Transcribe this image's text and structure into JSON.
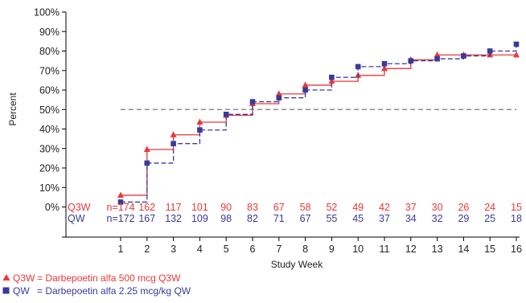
{
  "chart_data": {
    "type": "line",
    "step": true,
    "title": "",
    "xlabel": "Study Week",
    "ylabel": "Percent",
    "xlim": [
      0,
      16.5
    ],
    "ylim": [
      -10,
      100
    ],
    "x_ticks": [
      1,
      2,
      3,
      4,
      5,
      6,
      7,
      8,
      9,
      10,
      11,
      12,
      13,
      14,
      15,
      16
    ],
    "y_ticks": [
      0,
      10,
      20,
      30,
      40,
      50,
      60,
      70,
      80,
      90,
      100
    ],
    "y_tick_suffix": "%",
    "reference_line": {
      "y": 50,
      "style": "dashed",
      "color": "#777777"
    },
    "grid": false,
    "legend_position": "bottom-left",
    "series": [
      {
        "key": "Q3W",
        "name": "Q3W = Darbepoetin alfa 500 mcg Q3W",
        "legend_key": "Q3W",
        "legend_text": "= Darbepoetin alfa 500 mcg Q3W",
        "color": "#e8393b",
        "marker": "triangle",
        "line_style": "solid",
        "x": [
          1,
          2,
          3,
          4,
          5,
          6,
          7,
          8,
          9,
          10,
          11,
          12,
          13,
          14,
          15,
          16
        ],
        "values": [
          6,
          29.5,
          37,
          43.5,
          47,
          53,
          58,
          62.5,
          64.5,
          67.5,
          71,
          75.5,
          78,
          78,
          78,
          78
        ],
        "at_risk_label": "Q3W",
        "at_risk_prefix": "n=174",
        "at_risk_values": [
          "162",
          "117",
          "101",
          "90",
          "83",
          "67",
          "58",
          "52",
          "49",
          "42",
          "37",
          "30",
          "26",
          "24",
          "15"
        ]
      },
      {
        "key": "QW",
        "name": "QW = Darbepoetin alfa 2.25 mcg/kg QW",
        "legend_key": "QW",
        "legend_text": "= Darbepoetin alfa 2.25 mcg/kg QW",
        "color": "#3a3a9a",
        "marker": "square",
        "line_style": "dashed",
        "x": [
          1,
          2,
          3,
          4,
          5,
          6,
          7,
          8,
          9,
          10,
          11,
          12,
          13,
          14,
          15,
          16
        ],
        "values": [
          2.5,
          22.5,
          32.5,
          39.5,
          47.5,
          54,
          56,
          60,
          66.5,
          72,
          73.5,
          75,
          76,
          77.5,
          80,
          83.5
        ],
        "at_risk_label": "QW",
        "at_risk_prefix": "n=172",
        "at_risk_values": [
          "167",
          "132",
          "109",
          "98",
          "82",
          "71",
          "67",
          "55",
          "45",
          "37",
          "34",
          "32",
          "29",
          "25",
          "18"
        ]
      }
    ]
  }
}
